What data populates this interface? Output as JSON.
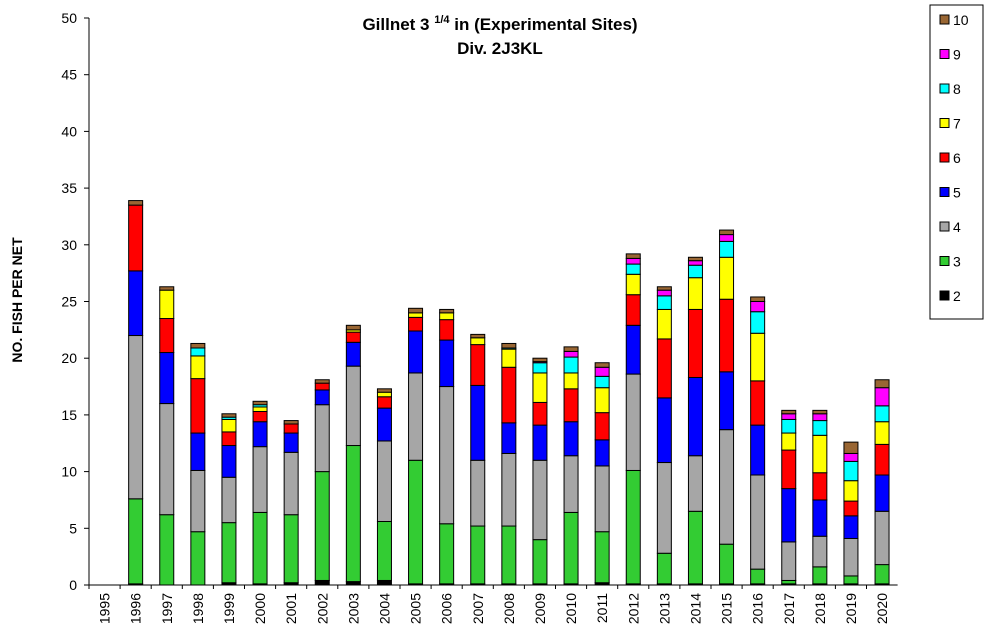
{
  "chart_data": {
    "type": "stacked_bar",
    "title": "Gillnet 3",
    "title_superscript": "1/4",
    "title_suffix": "in (Experimental Sites)",
    "subtitle": "Div. 2J3KL",
    "y_label": "NO. FISH PER NET",
    "categories": [
      "1995",
      "1996",
      "1997",
      "1998",
      "1999",
      "2000",
      "2001",
      "2002",
      "2003",
      "2004",
      "2005",
      "2006",
      "2007",
      "2008",
      "2009",
      "2010",
      "2011",
      "2012",
      "2013",
      "2014",
      "2015",
      "2016",
      "2017",
      "2018",
      "2019",
      "2020"
    ],
    "ylim": [
      0,
      50
    ],
    "yticks": [
      0,
      5,
      10,
      15,
      20,
      25,
      30,
      35,
      40,
      45,
      50
    ],
    "legend": "right",
    "series": [
      {
        "name": "2",
        "color": "#000000",
        "values": [
          null,
          0.1,
          0,
          0,
          0.2,
          0.1,
          0.2,
          0.4,
          0.3,
          0.4,
          0.1,
          0.1,
          0.1,
          0.1,
          0.1,
          0.1,
          0.2,
          0.1,
          0.1,
          0.1,
          0.1,
          0.1,
          0.1,
          0.1,
          0.1,
          0.1
        ]
      },
      {
        "name": "3",
        "color": "#33cc33",
        "values": [
          null,
          7.5,
          6.2,
          4.7,
          5.3,
          6.3,
          6.0,
          9.6,
          12.0,
          5.2,
          10.9,
          5.3,
          5.1,
          5.1,
          3.9,
          6.3,
          4.5,
          10.0,
          2.7,
          6.4,
          3.5,
          1.3,
          0.3,
          1.5,
          0.7,
          1.7
        ]
      },
      {
        "name": "4",
        "color": "#a6a6a6",
        "values": [
          null,
          14.4,
          9.8,
          5.4,
          4.0,
          5.8,
          5.5,
          5.9,
          7.0,
          7.1,
          7.7,
          12.1,
          5.8,
          6.4,
          7.0,
          5.0,
          5.8,
          8.5,
          8.0,
          4.9,
          10.1,
          8.3,
          3.4,
          2.7,
          3.3,
          4.7
        ]
      },
      {
        "name": "5",
        "color": "#0000ff",
        "values": [
          null,
          5.7,
          4.5,
          3.3,
          2.8,
          2.2,
          1.7,
          1.3,
          2.1,
          2.9,
          3.7,
          4.1,
          6.6,
          2.7,
          3.1,
          3.0,
          2.3,
          4.3,
          5.7,
          6.9,
          5.1,
          4.4,
          4.7,
          3.2,
          2.0,
          3.2
        ]
      },
      {
        "name": "6",
        "color": "#ff0000",
        "values": [
          null,
          5.8,
          3.0,
          4.8,
          1.2,
          0.9,
          0.8,
          0.6,
          0.9,
          1.0,
          1.2,
          1.8,
          3.6,
          4.9,
          2.0,
          2.9,
          2.4,
          2.7,
          5.2,
          6.0,
          6.4,
          3.9,
          3.4,
          2.4,
          1.3,
          2.7
        ]
      },
      {
        "name": "7",
        "color": "#ffff00",
        "values": [
          null,
          0,
          2.5,
          2.0,
          1.1,
          0.4,
          0,
          0,
          0.2,
          0.4,
          0.4,
          0.6,
          0.6,
          1.6,
          2.6,
          1.4,
          2.2,
          1.8,
          2.6,
          2.8,
          3.7,
          4.2,
          1.5,
          3.3,
          1.8,
          2.0
        ]
      },
      {
        "name": "8",
        "color": "#00ffff",
        "values": [
          null,
          0,
          0,
          0.7,
          0.2,
          0.2,
          0,
          0,
          0,
          0,
          0,
          0,
          0,
          0.1,
          0.9,
          1.4,
          1.0,
          0.9,
          1.2,
          1.1,
          1.4,
          1.9,
          1.2,
          1.3,
          1.7,
          1.4
        ]
      },
      {
        "name": "9",
        "color": "#ff00ff",
        "values": [
          null,
          0,
          0,
          0,
          0,
          0,
          0,
          0,
          0,
          0,
          0,
          0,
          0,
          0,
          0.1,
          0.5,
          0.8,
          0.5,
          0.5,
          0.4,
          0.6,
          0.9,
          0.5,
          0.6,
          0.7,
          1.6
        ]
      },
      {
        "name": "10",
        "color": "#996633",
        "values": [
          null,
          0.4,
          0.3,
          0.4,
          0.3,
          0.3,
          0.3,
          0.3,
          0.4,
          0.3,
          0.4,
          0.3,
          0.3,
          0.4,
          0.3,
          0.4,
          0.4,
          0.4,
          0.3,
          0.3,
          0.4,
          0.4,
          0.3,
          0.3,
          1.0,
          0.7
        ]
      }
    ]
  }
}
